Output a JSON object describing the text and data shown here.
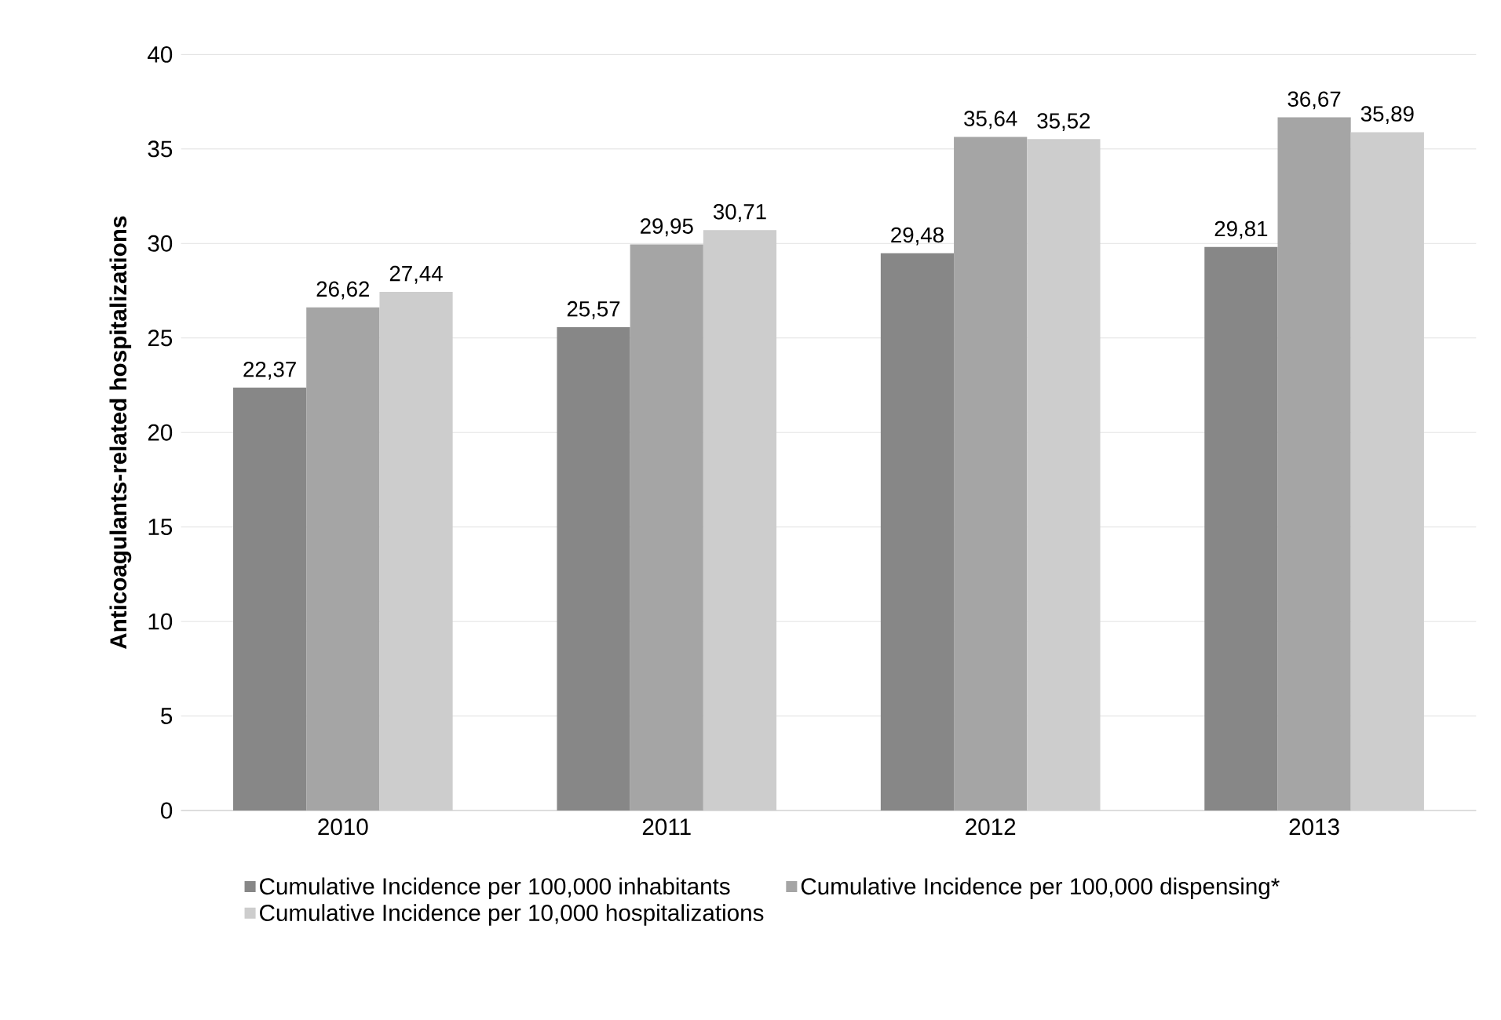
{
  "chart_data": {
    "type": "bar",
    "ylabel": "Anticoagulants-related hospitalizations",
    "categories": [
      "2010",
      "2011",
      "2012",
      "2013"
    ],
    "series": [
      {
        "name": "Cumulative Incidence per 100,000 inhabitants",
        "color": "#878787",
        "values": [
          22.37,
          25.57,
          29.48,
          29.81
        ],
        "value_labels": [
          "22,37",
          "25,57",
          "29,48",
          "29,81"
        ]
      },
      {
        "name": "Cumulative Incidence per 100,000 dispensing*",
        "color": "#a5a5a5",
        "values": [
          26.62,
          29.95,
          35.64,
          36.67
        ],
        "value_labels": [
          "26,62",
          "29,95",
          "35,64",
          "36,67"
        ]
      },
      {
        "name": "Cumulative Incidence per 10,000 hospitalizations",
        "color": "#cdcdcd",
        "values": [
          27.44,
          30.71,
          35.52,
          35.89
        ],
        "value_labels": [
          "27,44",
          "30,71",
          "35,52",
          "35,89"
        ]
      }
    ],
    "ylim": [
      0,
      40
    ],
    "yticks": [
      0,
      5,
      10,
      15,
      20,
      25,
      30,
      35,
      40
    ],
    "grid": "y",
    "legend": "bottom"
  }
}
